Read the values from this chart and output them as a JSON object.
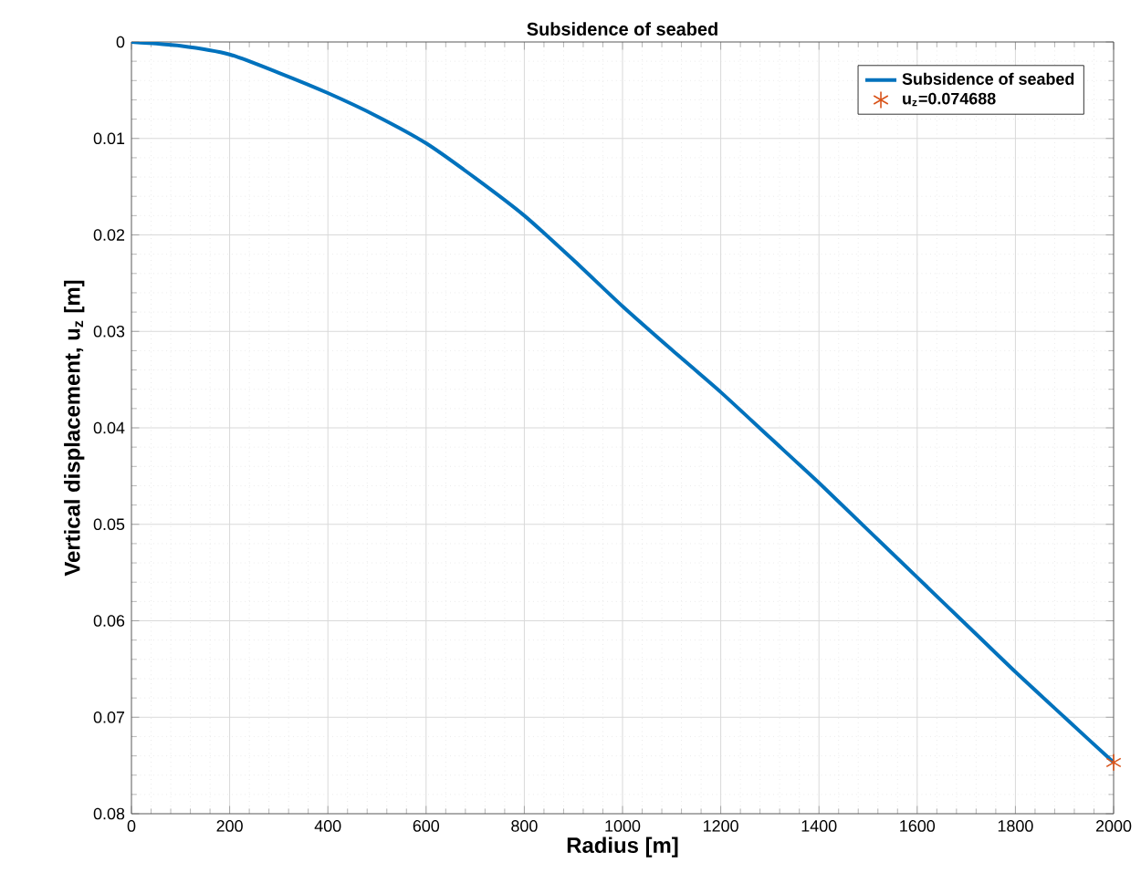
{
  "chart_data": {
    "type": "line",
    "title": "Subsidence of seabed",
    "xlabel": "Radius [m]",
    "ylabel": "Vertical displacement, u$_{z}$ [m]",
    "series": [
      {
        "name": "Subsidence of seabed",
        "color": "#0072bd",
        "x": [
          0,
          100,
          200,
          300,
          400,
          500,
          600,
          700,
          800,
          900,
          1000,
          1100,
          1200,
          1300,
          1400,
          1500,
          1600,
          1700,
          1800,
          1900,
          2000
        ],
        "values": [
          0,
          0.0004,
          0.0013,
          0.0032,
          0.0053,
          0.0077,
          0.0105,
          0.0141,
          0.018,
          0.0226,
          0.0274,
          0.0319,
          0.0363,
          0.041,
          0.0457,
          0.0506,
          0.0555,
          0.0604,
          0.0653,
          0.07,
          0.074688
        ]
      },
      {
        "name": "u$_{z}$=0.074688",
        "type": "scatter",
        "marker": "cross",
        "color": "#d95319",
        "x": [
          2000
        ],
        "values": [
          0.074688
        ]
      }
    ],
    "xlim": [
      0,
      2000
    ],
    "ylim": [
      0.08,
      0
    ],
    "xticks": [
      0,
      200,
      400,
      600,
      800,
      1000,
      1200,
      1400,
      1600,
      1800,
      2000
    ],
    "yticks": [
      0,
      0.01,
      0.02,
      0.03,
      0.04,
      0.05,
      0.06,
      0.07,
      0.08
    ],
    "grid": true,
    "legend": "top right"
  }
}
